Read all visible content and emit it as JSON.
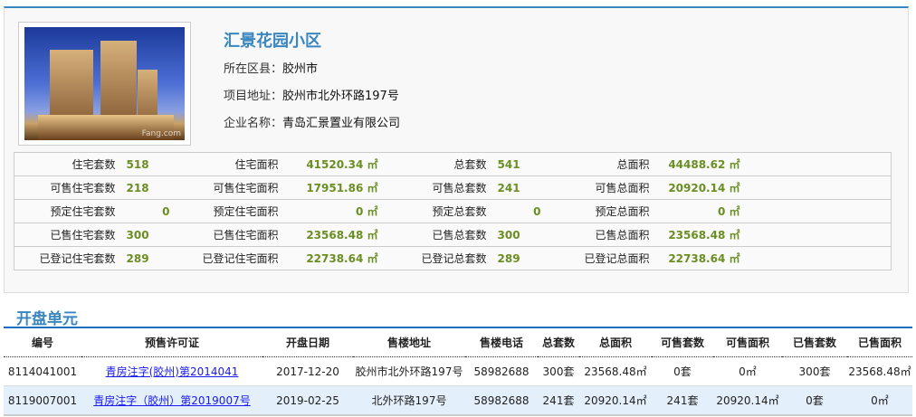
{
  "project": {
    "name": "汇景花园小区",
    "district_label": "所在区县：",
    "district": "胶州市",
    "address_label": "项目地址：",
    "address": "胶州市北外环路197号",
    "company_label": "企业名称：",
    "company": "青岛汇景置业有限公司",
    "photo_watermark": "Fang.com"
  },
  "stats": [
    [
      [
        "住宅套数",
        "518"
      ],
      [
        "住宅面积",
        "41520.34 ㎡"
      ],
      [
        "总套数",
        "541"
      ],
      [
        "总面积",
        "44488.62 ㎡"
      ]
    ],
    [
      [
        "可售住宅套数",
        "218"
      ],
      [
        "可售住宅面积",
        "17951.86 ㎡"
      ],
      [
        "可售总套数",
        "241"
      ],
      [
        "可售总面积",
        "20920.14 ㎡"
      ]
    ],
    [
      [
        "预定住宅套数",
        "0"
      ],
      [
        "预定住宅面积",
        "0 ㎡"
      ],
      [
        "预定总套数",
        "0"
      ],
      [
        "预定总面积",
        "0 ㎡"
      ]
    ],
    [
      [
        "已售住宅套数",
        "300"
      ],
      [
        "已售住宅面积",
        "23568.48 ㎡"
      ],
      [
        "已售总套数",
        "300"
      ],
      [
        "已售总面积",
        "23568.48 ㎡"
      ]
    ],
    [
      [
        "已登记住宅套数",
        "289"
      ],
      [
        "已登记住宅面积",
        "22738.64 ㎡"
      ],
      [
        "已登记总套数",
        "289"
      ],
      [
        "已登记总面积",
        "22738.64 ㎡"
      ]
    ]
  ],
  "units": {
    "title": "开盘单元",
    "headers": [
      "编号",
      "预售许可证",
      "开盘日期",
      "售楼地址",
      "售楼电话",
      "总套数",
      "总面积",
      "可售套数",
      "可售面积",
      "已售套数",
      "已售面积"
    ],
    "rows": [
      [
        "8114041001",
        "青房注字(胶州)第2014041",
        "2017-12-20",
        "胶州市北外环路197号",
        "58982688",
        "300套",
        "23568.48㎡",
        "0套",
        "0㎡",
        "300套",
        "23568.48㎡"
      ],
      [
        "8119007001",
        "青房注字（胶州）第2019007号",
        "2019-02-25",
        "北外环路197号",
        "58982688",
        "241套",
        "20920.14㎡",
        "241套",
        "20920.14㎡",
        "0套",
        "0㎡"
      ]
    ]
  },
  "colors": {
    "accent": "#3a87c0",
    "value": "#6b8e23",
    "link": "#1a1aee",
    "alt_row": "#e3effb"
  }
}
